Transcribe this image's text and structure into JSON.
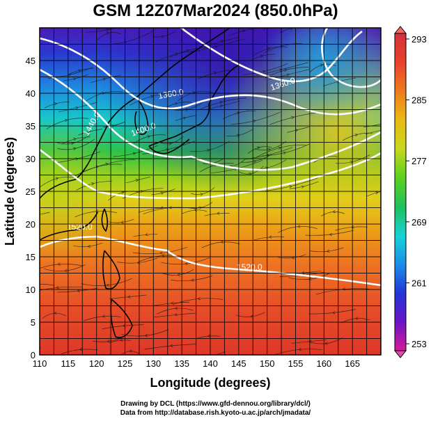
{
  "title": "GSM 12Z07Mar2024 (850.0hPa)",
  "axes": {
    "xlabel": "Longitude (degrees)",
    "ylabel": "Latitude  (degrees)",
    "xlim": [
      110,
      170
    ],
    "ylim": [
      0,
      50
    ],
    "xticks": [
      110,
      115,
      120,
      125,
      130,
      135,
      140,
      145,
      150,
      155,
      160,
      165
    ],
    "yticks": [
      0,
      5,
      10,
      15,
      20,
      25,
      30,
      35,
      40,
      45
    ],
    "grid": true
  },
  "colorbar": {
    "tick_labels": [
      "293",
      "285",
      "277",
      "269",
      "261",
      "253"
    ],
    "range": [
      253,
      293
    ],
    "colors": [
      "#d81a9a",
      "#6a15c6",
      "#2234d8",
      "#1a8ce8",
      "#17d2d8",
      "#1ec15f",
      "#5ed21d",
      "#c9d81e",
      "#ecb815",
      "#ed7a1e",
      "#e9412a",
      "#d5303a"
    ]
  },
  "contour_labels": [
    "1360.0",
    "1360.0",
    "1400.0",
    "1440.0",
    "1520.0",
    "1520.0"
  ],
  "credits": {
    "line1": "Drawing by DCL (https://www.gfd-dennou.org/library/dcl/)",
    "line2": "Data from http://database.rish.kyoto-u.ac.jp/arch/jmadata/"
  }
}
